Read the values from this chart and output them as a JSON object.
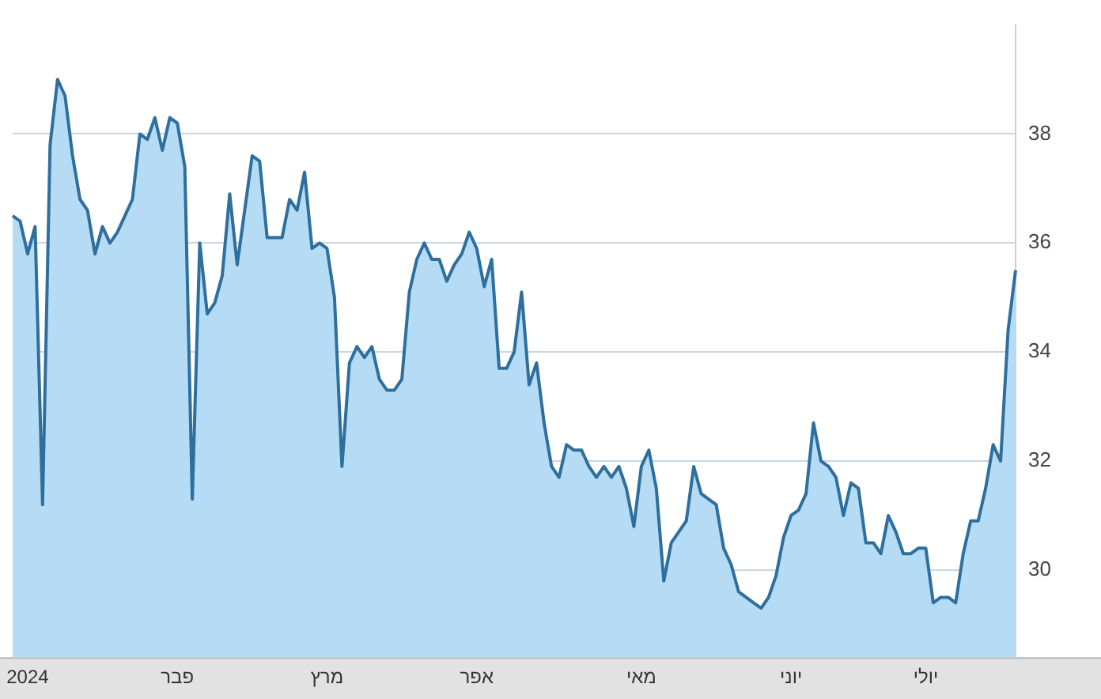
{
  "chart_data": {
    "type": "area",
    "categories": [
      null,
      null,
      "2024",
      null,
      null,
      null,
      null,
      null,
      null,
      null,
      null,
      null,
      null,
      null,
      null,
      null,
      null,
      null,
      null,
      null,
      null,
      null,
      "פבר",
      null,
      null,
      null,
      null,
      null,
      null,
      null,
      null,
      null,
      null,
      null,
      null,
      null,
      null,
      null,
      null,
      null,
      null,
      null,
      "מרץ",
      null,
      null,
      null,
      null,
      null,
      null,
      null,
      null,
      null,
      null,
      null,
      null,
      null,
      null,
      null,
      null,
      null,
      null,
      null,
      "אפר",
      null,
      null,
      null,
      null,
      null,
      null,
      null,
      null,
      null,
      null,
      null,
      null,
      null,
      null,
      null,
      null,
      null,
      null,
      null,
      null,
      null,
      "מאי",
      null,
      null,
      null,
      null,
      null,
      null,
      null,
      null,
      null,
      null,
      null,
      null,
      null,
      null,
      null,
      null,
      null,
      null,
      null,
      "יוני",
      null,
      null,
      null,
      null,
      null,
      null,
      null,
      null,
      null,
      null,
      null,
      null,
      null,
      null,
      null,
      null,
      null,
      "יולי",
      null,
      null,
      null,
      null,
      null,
      null,
      null,
      null,
      null,
      null,
      null,
      null
    ],
    "series": [
      {
        "color": "#2e6f9e",
        "values": [
          36.5,
          36.4,
          35.8,
          36.3,
          31.2,
          37.8,
          39.0,
          38.7,
          37.6,
          36.8,
          36.6,
          35.8,
          36.3,
          36.0,
          36.2,
          36.5,
          36.8,
          38.0,
          37.9,
          38.3,
          37.7,
          38.3,
          38.2,
          37.4,
          31.3,
          36.0,
          34.7,
          34.9,
          35.4,
          36.9,
          35.6,
          36.6,
          37.6,
          37.5,
          36.1,
          36.1,
          36.1,
          36.8,
          36.6,
          37.3,
          35.9,
          36.0,
          35.9,
          35.0,
          31.9,
          33.8,
          34.1,
          33.9,
          34.1,
          33.5,
          33.3,
          33.3,
          33.5,
          35.1,
          35.7,
          36.0,
          35.7,
          35.7,
          35.3,
          35.6,
          35.8,
          36.2,
          35.9,
          35.2,
          35.7,
          33.7,
          33.7,
          34.0,
          35.1,
          33.4,
          33.8,
          32.7,
          31.9,
          31.7,
          32.3,
          32.2,
          32.2,
          31.9,
          31.7,
          31.9,
          31.7,
          31.9,
          31.5,
          30.8,
          31.9,
          32.2,
          31.5,
          29.8,
          30.5,
          30.7,
          30.9,
          31.9,
          31.4,
          31.3,
          31.2,
          30.4,
          30.1,
          29.6,
          29.5,
          29.4,
          29.3,
          29.5,
          29.9,
          30.6,
          31.0,
          31.1,
          31.4,
          32.7,
          32.0,
          31.9,
          31.7,
          31.0,
          31.6,
          31.5,
          30.5,
          30.5,
          30.3,
          31.0,
          30.7,
          30.3,
          30.3,
          30.4,
          30.4,
          29.4,
          29.5,
          29.5,
          29.4,
          30.3,
          30.9,
          30.9,
          31.5,
          32.3,
          32.0,
          34.4,
          35.5
        ]
      }
    ],
    "ylim": [
      28.4,
      40
    ],
    "yticks": [
      30,
      32,
      34,
      36,
      38
    ],
    "grid": "y",
    "legend": false,
    "marker": "none",
    "line_style": "solid"
  }
}
